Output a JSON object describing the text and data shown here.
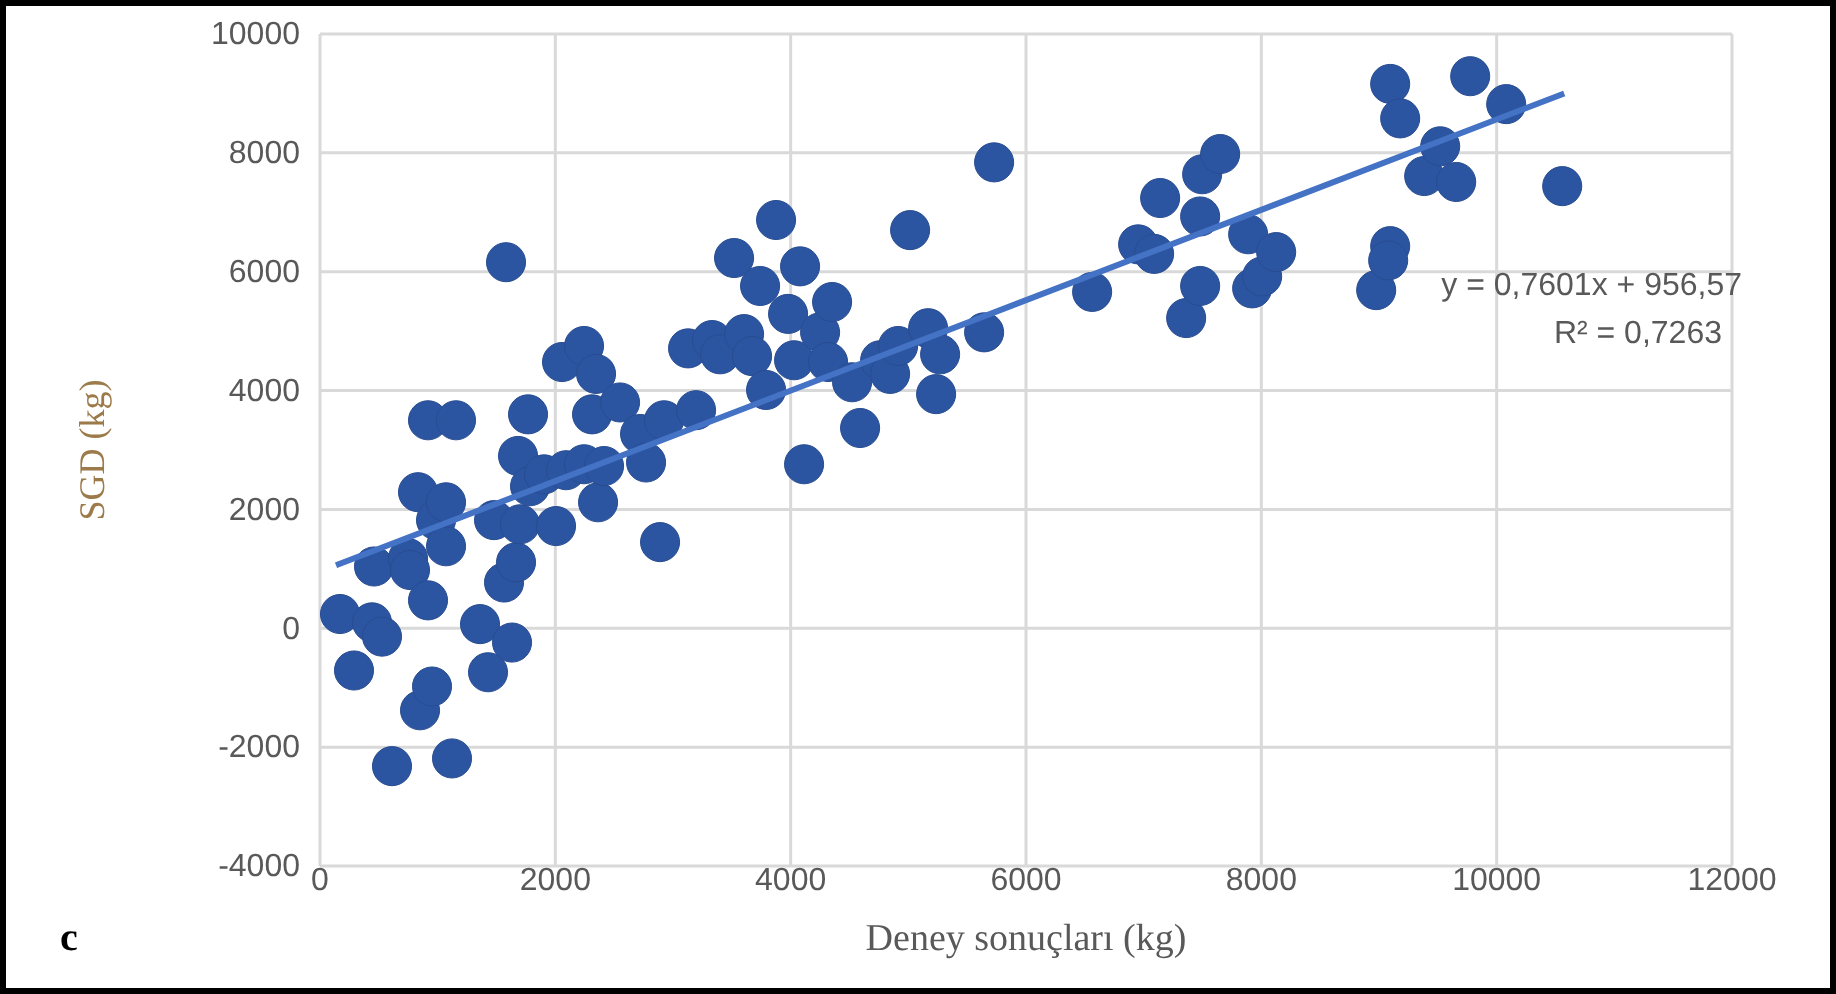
{
  "chart_data": {
    "type": "scatter",
    "xlabel": "Deney sonuçları (kg)",
    "ylabel": "SGD (kg)",
    "xlim": [
      0,
      12000
    ],
    "xticks": [
      0,
      2000,
      4000,
      6000,
      8000,
      10000,
      12000
    ],
    "ylim": [
      -4000,
      10000
    ],
    "yticks": [
      -4000,
      -2000,
      0,
      2000,
      4000,
      6000,
      8000,
      10000
    ],
    "grid": true,
    "annotations": [
      "y = 0,7601x + 956,57",
      "R² = 0,7263",
      "c"
    ],
    "series": [
      {
        "color": "#2c55a1",
        "marker": "circle",
        "x": [
          170,
          289,
          442,
          459,
          527,
          612,
          748,
          765,
          833,
          850,
          918,
          918,
          952,
          986,
          1071,
          1071,
          1156,
          1122,
          1360,
          1428,
          1479,
          1564,
          1581,
          1632,
          1666,
          1700,
          1683,
          1768,
          1785,
          1904,
          2006,
          2057,
          2091,
          2244,
          2244,
          2312,
          2346,
          2363,
          2414,
          2550,
          2720,
          2771,
          2890,
          2924,
          3128,
          3196,
          3332,
          3400,
          3519,
          3604,
          3672,
          3740,
          3791,
          3876,
          3978,
          4029,
          4080,
          4114,
          4250,
          4318,
          4352,
          4522,
          4590,
          4760,
          4845,
          4913,
          5015,
          5168,
          5236,
          5270,
          5644,
          5729,
          6562,
          6953,
          7140,
          7089,
          7361,
          7480,
          7480,
          7497,
          7650,
          7888,
          7922,
          8007,
          8126,
          8976,
          9095,
          9095,
          9078,
          9180,
          9384,
          9520,
          9656,
          9775,
          10081,
          10557
        ],
        "values": [
          240,
          -710,
          100,
          1040,
          -140,
          -2320,
          1180,
          980,
          2290,
          -1380,
          470,
          3500,
          -980,
          1820,
          2120,
          1380,
          3500,
          -2190,
          70,
          -740,
          1820,
          770,
          6160,
          -240,
          1110,
          1750,
          2900,
          3600,
          2390,
          2590,
          1720,
          4480,
          2660,
          4750,
          2760,
          3600,
          4280,
          2120,
          2730,
          3800,
          3270,
          2790,
          1450,
          3500,
          4710,
          3670,
          4850,
          4610,
          6230,
          4950,
          4580,
          5760,
          4010,
          6870,
          5290,
          4510,
          6090,
          2760,
          4980,
          4480,
          5490,
          4140,
          3370,
          4510,
          4280,
          4750,
          6700,
          5050,
          3940,
          4610,
          4980,
          7840,
          5660,
          6460,
          7240,
          6300,
          5220,
          5760,
          6930,
          7640,
          7980,
          6630,
          5720,
          5920,
          6330,
          5690,
          9160,
          6430,
          6190,
          8580,
          7610,
          8110,
          7510,
          9290,
          8820,
          7440
        ]
      },
      {
        "type": "line",
        "color": "#4472c4",
        "line_style": "solid",
        "x": [
          136,
          10574
        ],
        "values": [
          1060,
          9000
        ]
      }
    ]
  }
}
